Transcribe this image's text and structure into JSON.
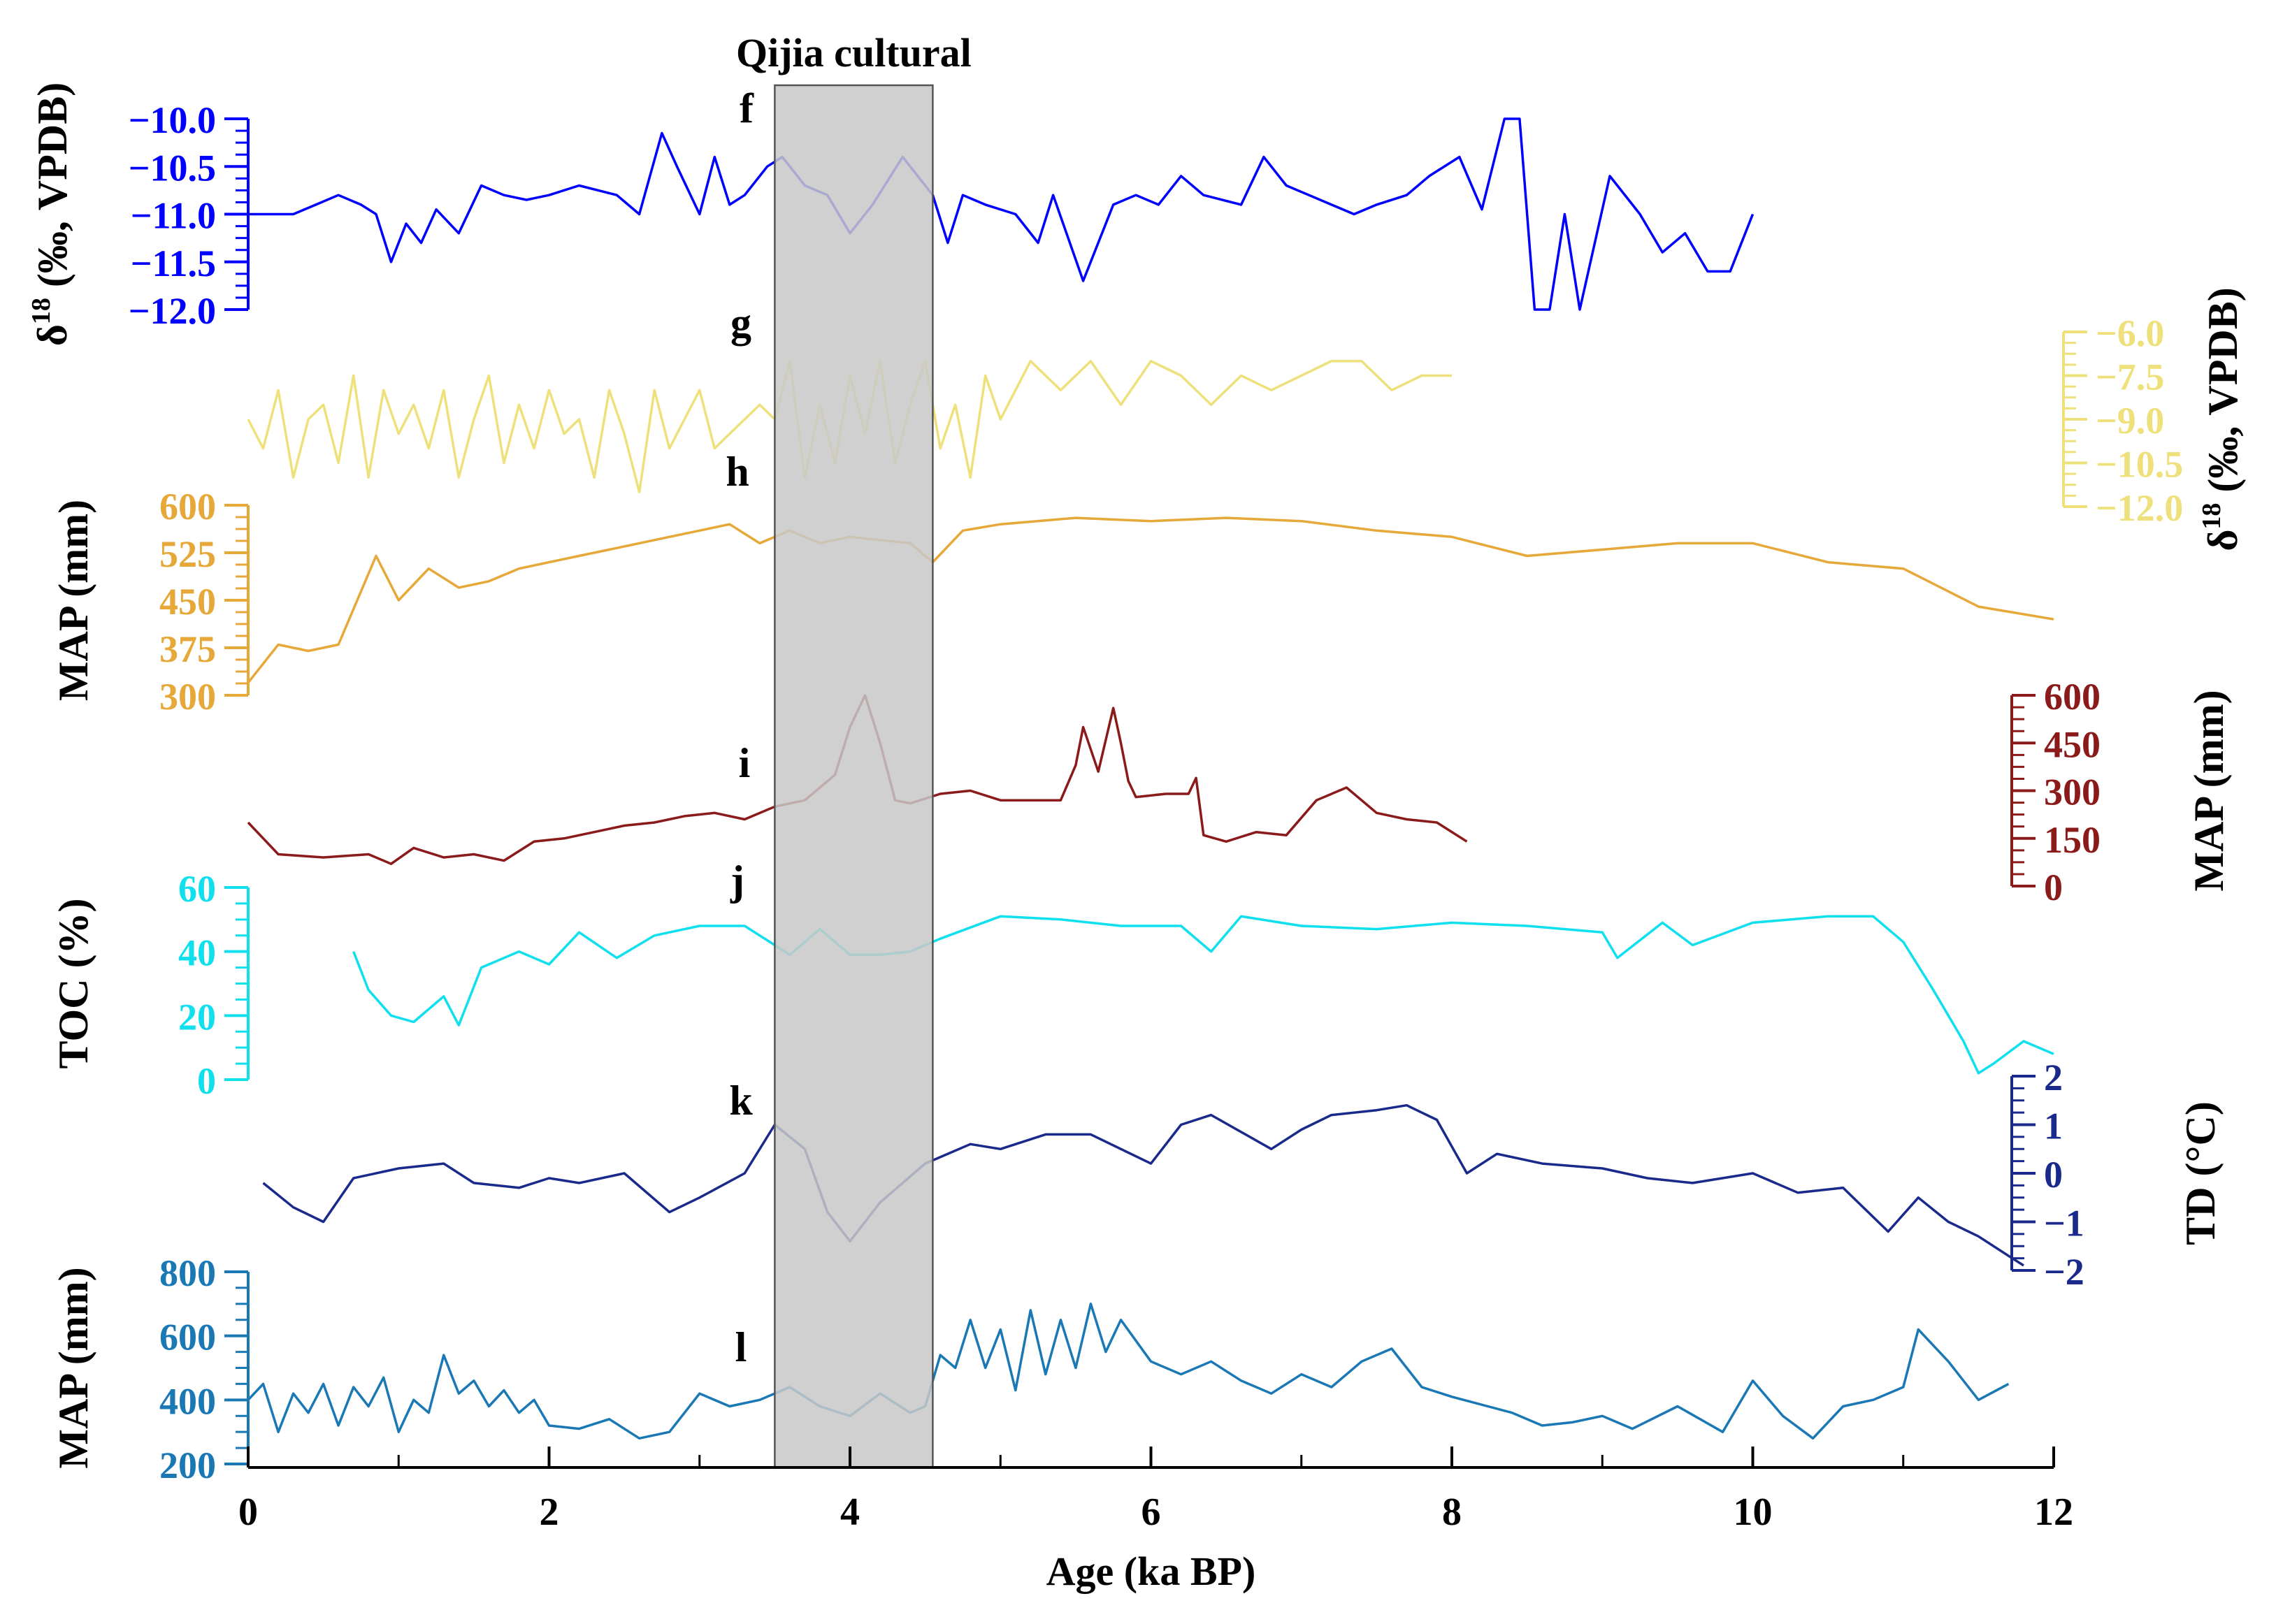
{
  "chart_data": {
    "type": "line",
    "title": "Qijia cultural",
    "shaded_period": {
      "label": "Qijia cultural",
      "x_range": [
        3.5,
        4.55
      ]
    },
    "x_axis": {
      "label": "Age (ka BP)",
      "range": [
        0,
        12
      ],
      "ticks": [
        0,
        2,
        4,
        6,
        8,
        10,
        12
      ],
      "tick_labels": [
        "0",
        "2",
        "4",
        "6",
        "8",
        "10",
        "12"
      ]
    },
    "panels": [
      {
        "id": "f",
        "panel_label": "f",
        "color": "#0000ff",
        "axis_side": "left",
        "axis_label": "δ18 (‰, VPDB)",
        "axis_label_base": "δ",
        "axis_label_sup": "18",
        "axis_label_rest": " (‰, VPDB)",
        "reversed": true,
        "range": [
          -10.0,
          -12.0
        ],
        "ticks": [
          -10.0,
          -10.5,
          -11.0,
          -11.5,
          -12.0
        ],
        "tick_labels": [
          "−10.0",
          "−10.5",
          "−11.0",
          "−11.5",
          "−12.0"
        ],
        "x": [
          0,
          0.15,
          0.3,
          0.45,
          0.6,
          0.75,
          0.85,
          0.95,
          1.05,
          1.15,
          1.25,
          1.4,
          1.55,
          1.7,
          1.85,
          2.0,
          2.2,
          2.45,
          2.6,
          2.75,
          2.85,
          3.0,
          3.1,
          3.2,
          3.3,
          3.45,
          3.55,
          3.7,
          3.85,
          4.0,
          4.15,
          4.35,
          4.55,
          4.65,
          4.75,
          4.9,
          5.1,
          5.25,
          5.35,
          5.55,
          5.75,
          5.9,
          6.05,
          6.2,
          6.35,
          6.6,
          6.75,
          6.9,
          7.05,
          7.2,
          7.35,
          7.5,
          7.7,
          7.85,
          8.05,
          8.2,
          8.35,
          8.45,
          8.55,
          8.65,
          8.75,
          8.85,
          9.05,
          9.25,
          9.4,
          9.55,
          9.7,
          9.85,
          10.0
        ],
        "y": [
          -11.0,
          -11.0,
          -11.0,
          -10.9,
          -10.8,
          -10.9,
          -11.0,
          -11.5,
          -11.1,
          -11.3,
          -10.95,
          -11.2,
          -10.7,
          -10.8,
          -10.85,
          -10.8,
          -10.7,
          -10.8,
          -11.0,
          -10.15,
          -10.5,
          -11.0,
          -10.4,
          -10.9,
          -10.8,
          -10.5,
          -10.4,
          -10.7,
          -10.8,
          -11.2,
          -10.9,
          -10.4,
          -10.8,
          -11.3,
          -10.8,
          -10.9,
          -11.0,
          -11.3,
          -10.8,
          -11.7,
          -10.9,
          -10.8,
          -10.9,
          -10.6,
          -10.8,
          -10.9,
          -10.4,
          -10.7,
          -10.8,
          -10.9,
          -11.0,
          -10.9,
          -10.8,
          -10.6,
          -10.4,
          -10.95,
          -10.0,
          -10.0,
          -12.0,
          -12.0,
          -11.0,
          -12.0,
          -10.6,
          -11.0,
          -11.4,
          -11.2,
          -11.6,
          -11.6,
          -11.0
        ]
      },
      {
        "id": "g",
        "panel_label": "g",
        "color": "#eee07a",
        "axis_side": "right",
        "axis_label": "δ18 (‰, VPDB)",
        "axis_label_base": "δ",
        "axis_label_sup": "18",
        "axis_label_rest": " (‰, VPDB)",
        "reversed": true,
        "range": [
          -6.0,
          -12.0
        ],
        "ticks": [
          -6.0,
          -7.5,
          -9.0,
          -10.5,
          -12.0
        ],
        "tick_labels": [
          "−6.0",
          "−7.5",
          "−9.0",
          "−10.5",
          "−12.0"
        ],
        "x": [
          0,
          0.1,
          0.2,
          0.3,
          0.4,
          0.5,
          0.6,
          0.7,
          0.8,
          0.9,
          1.0,
          1.1,
          1.2,
          1.3,
          1.4,
          1.5,
          1.6,
          1.7,
          1.8,
          1.9,
          2.0,
          2.1,
          2.2,
          2.3,
          2.4,
          2.5,
          2.6,
          2.7,
          2.8,
          2.9,
          3.0,
          3.1,
          3.2,
          3.3,
          3.4,
          3.5,
          3.6,
          3.7,
          3.8,
          3.9,
          4.0,
          4.1,
          4.2,
          4.3,
          4.4,
          4.5,
          4.6,
          4.7,
          4.8,
          4.9,
          5.0,
          5.2,
          5.4,
          5.6,
          5.8,
          6.0,
          6.2,
          6.4,
          6.6,
          6.8,
          7.0,
          7.2,
          7.4,
          7.6,
          7.8,
          8.0
        ],
        "y": [
          -9.0,
          -10.0,
          -8.0,
          -11.0,
          -9.0,
          -8.5,
          -10.5,
          -7.5,
          -11.0,
          -8.0,
          -9.5,
          -8.5,
          -10.0,
          -8.0,
          -11.0,
          -9.0,
          -7.5,
          -10.5,
          -8.5,
          -10.0,
          -8.0,
          -9.5,
          -9.0,
          -11.0,
          -8.0,
          -9.5,
          -11.5,
          -8.0,
          -10.0,
          -9.0,
          -8.0,
          -10.0,
          -9.5,
          -9.0,
          -8.5,
          -9.0,
          -7.0,
          -11.0,
          -8.5,
          -10.5,
          -7.5,
          -9.5,
          -7.0,
          -10.5,
          -8.5,
          -7.0,
          -10.0,
          -8.5,
          -11.0,
          -7.5,
          -9.0,
          -7.0,
          -8.0,
          -7.0,
          -8.5,
          -7.0,
          -7.5,
          -8.5,
          -7.5,
          -8.0,
          -7.5,
          -7.0,
          -7.0,
          -8.0,
          -7.5,
          -7.5
        ]
      },
      {
        "id": "h",
        "panel_label": "h",
        "color": "#e6a838",
        "axis_side": "left",
        "axis_label": "MAP (mm)",
        "reversed": false,
        "range": [
          300,
          600
        ],
        "ticks": [
          300,
          375,
          450,
          525,
          600
        ],
        "tick_labels": [
          "300",
          "375",
          "450",
          "525",
          "600"
        ],
        "x": [
          0,
          0.2,
          0.4,
          0.6,
          0.85,
          1.0,
          1.2,
          1.4,
          1.6,
          1.8,
          2.0,
          2.2,
          2.4,
          2.6,
          2.8,
          3.0,
          3.2,
          3.4,
          3.6,
          3.8,
          4.0,
          4.2,
          4.4,
          4.55,
          4.75,
          5.0,
          5.5,
          6.0,
          6.5,
          7.0,
          7.5,
          8.0,
          8.5,
          9.0,
          9.5,
          10.0,
          10.5,
          11.0,
          11.5,
          12.0
        ],
        "y": [
          320,
          380,
          370,
          380,
          520,
          450,
          500,
          470,
          480,
          500,
          510,
          520,
          530,
          540,
          550,
          560,
          570,
          540,
          560,
          540,
          550,
          545,
          540,
          510,
          560,
          570,
          580,
          575,
          580,
          575,
          560,
          550,
          520,
          530,
          540,
          540,
          510,
          500,
          440,
          420
        ]
      },
      {
        "id": "i",
        "panel_label": "i",
        "color": "#8b1a1a",
        "axis_side": "right",
        "axis_label": "MAP (mm)",
        "reversed": false,
        "range": [
          0,
          600
        ],
        "ticks": [
          0,
          150,
          300,
          450,
          600
        ],
        "tick_labels": [
          "0",
          "150",
          "300",
          "450",
          "600"
        ],
        "x": [
          0,
          0.2,
          0.5,
          0.8,
          0.95,
          1.1,
          1.3,
          1.5,
          1.7,
          1.9,
          2.1,
          2.3,
          2.5,
          2.7,
          2.9,
          3.1,
          3.3,
          3.5,
          3.7,
          3.9,
          4.0,
          4.1,
          4.2,
          4.3,
          4.4,
          4.6,
          4.8,
          5.0,
          5.4,
          5.5,
          5.55,
          5.65,
          5.75,
          5.8,
          5.85,
          5.9,
          6.1,
          6.25,
          6.3,
          6.35,
          6.5,
          6.7,
          6.9,
          7.1,
          7.3,
          7.5,
          7.7,
          7.9,
          8.1
        ],
        "y": [
          200,
          100,
          90,
          100,
          70,
          120,
          90,
          100,
          80,
          140,
          150,
          170,
          190,
          200,
          220,
          230,
          210,
          250,
          270,
          350,
          500,
          600,
          450,
          270,
          260,
          290,
          300,
          270,
          270,
          380,
          500,
          360,
          560,
          450,
          330,
          280,
          290,
          290,
          340,
          160,
          140,
          170,
          160,
          270,
          310,
          230,
          210,
          200,
          140
        ]
      },
      {
        "id": "j",
        "panel_label": "j",
        "color": "#10e0ee",
        "axis_side": "left",
        "axis_label": "TOC (%)",
        "reversed": false,
        "range": [
          0,
          60
        ],
        "ticks": [
          0,
          20,
          40,
          60
        ],
        "tick_labels": [
          "0",
          "20",
          "40",
          "60"
        ],
        "x": [
          0.7,
          0.8,
          0.95,
          1.1,
          1.3,
          1.4,
          1.55,
          1.8,
          2.0,
          2.2,
          2.45,
          2.7,
          3.0,
          3.3,
          3.5,
          3.6,
          3.8,
          4.0,
          4.2,
          4.4,
          4.6,
          5.0,
          5.4,
          5.8,
          6.2,
          6.4,
          6.6,
          7.0,
          7.5,
          8.0,
          8.5,
          9.0,
          9.1,
          9.4,
          9.6,
          10.0,
          10.5,
          10.8,
          11.0,
          11.2,
          11.4,
          11.5,
          11.6,
          11.8,
          12.0
        ],
        "y": [
          40,
          28,
          20,
          18,
          26,
          17,
          35,
          40,
          36,
          46,
          38,
          45,
          48,
          48,
          42,
          39,
          47,
          39,
          39,
          40,
          44,
          51,
          50,
          48,
          48,
          40,
          51,
          48,
          47,
          49,
          48,
          46,
          38,
          49,
          42,
          49,
          51,
          51,
          43,
          28,
          12,
          2,
          5,
          12,
          8
        ]
      },
      {
        "id": "k",
        "panel_label": "k",
        "color": "#1a2a8c",
        "axis_side": "right",
        "axis_label": "TD (°C)",
        "reversed": false,
        "range": [
          -2,
          2
        ],
        "ticks": [
          -2,
          -1,
          0,
          1,
          2
        ],
        "tick_labels": [
          "−2",
          "−1",
          "0",
          "1",
          "2"
        ],
        "x": [
          0.1,
          0.3,
          0.5,
          0.7,
          1.0,
          1.3,
          1.5,
          1.8,
          2.0,
          2.2,
          2.5,
          2.8,
          3.0,
          3.3,
          3.5,
          3.7,
          3.85,
          4.0,
          4.2,
          4.5,
          4.8,
          5.0,
          5.3,
          5.6,
          6.0,
          6.2,
          6.4,
          6.8,
          7.0,
          7.2,
          7.5,
          7.7,
          7.9,
          8.1,
          8.3,
          8.6,
          9.0,
          9.3,
          9.6,
          10.0,
          10.3,
          10.6,
          10.9,
          11.1,
          11.3,
          11.5,
          11.7,
          11.8
        ],
        "y": [
          -0.2,
          -0.7,
          -1.0,
          -0.1,
          0.1,
          0.2,
          -0.2,
          -0.3,
          -0.1,
          -0.2,
          0.0,
          -0.8,
          -0.5,
          0.0,
          1.0,
          0.5,
          -0.8,
          -1.4,
          -0.6,
          0.2,
          0.6,
          0.5,
          0.8,
          0.8,
          0.2,
          1.0,
          1.2,
          0.5,
          0.9,
          1.2,
          1.3,
          1.4,
          1.1,
          0.0,
          0.4,
          0.2,
          0.1,
          -0.1,
          -0.2,
          0.0,
          -0.4,
          -0.3,
          -1.2,
          -0.5,
          -1.0,
          -1.3,
          -1.7,
          -1.9
        ]
      },
      {
        "id": "l",
        "panel_label": "l",
        "color": "#1a78b4",
        "axis_side": "left",
        "axis_label": "MAP (mm)",
        "reversed": false,
        "range": [
          200,
          800
        ],
        "ticks": [
          200,
          400,
          600,
          800
        ],
        "tick_labels": [
          "200",
          "400",
          "600",
          "800"
        ],
        "x": [
          0,
          0.1,
          0.2,
          0.3,
          0.4,
          0.5,
          0.6,
          0.7,
          0.8,
          0.9,
          1.0,
          1.1,
          1.2,
          1.3,
          1.4,
          1.5,
          1.6,
          1.7,
          1.8,
          1.9,
          2.0,
          2.2,
          2.4,
          2.6,
          2.8,
          3.0,
          3.2,
          3.4,
          3.6,
          3.8,
          4.0,
          4.2,
          4.4,
          4.5,
          4.6,
          4.7,
          4.8,
          4.9,
          5.0,
          5.1,
          5.2,
          5.3,
          5.4,
          5.5,
          5.6,
          5.7,
          5.8,
          6.0,
          6.2,
          6.4,
          6.6,
          6.8,
          7.0,
          7.2,
          7.4,
          7.6,
          7.8,
          8.0,
          8.4,
          8.6,
          8.8,
          9.0,
          9.2,
          9.5,
          9.8,
          10.0,
          10.2,
          10.4,
          10.6,
          10.8,
          11.0,
          11.1,
          11.3,
          11.5,
          11.7
        ],
        "y": [
          400,
          450,
          300,
          420,
          360,
          450,
          320,
          440,
          380,
          470,
          300,
          400,
          360,
          540,
          420,
          460,
          380,
          430,
          360,
          400,
          320,
          310,
          340,
          280,
          300,
          420,
          380,
          400,
          440,
          380,
          350,
          420,
          360,
          380,
          540,
          500,
          650,
          500,
          620,
          430,
          680,
          480,
          650,
          500,
          700,
          550,
          650,
          520,
          480,
          520,
          460,
          420,
          480,
          440,
          520,
          560,
          440,
          410,
          360,
          320,
          330,
          350,
          310,
          380,
          300,
          460,
          350,
          280,
          380,
          400,
          440,
          620,
          520,
          400,
          450
        ]
      }
    ]
  }
}
